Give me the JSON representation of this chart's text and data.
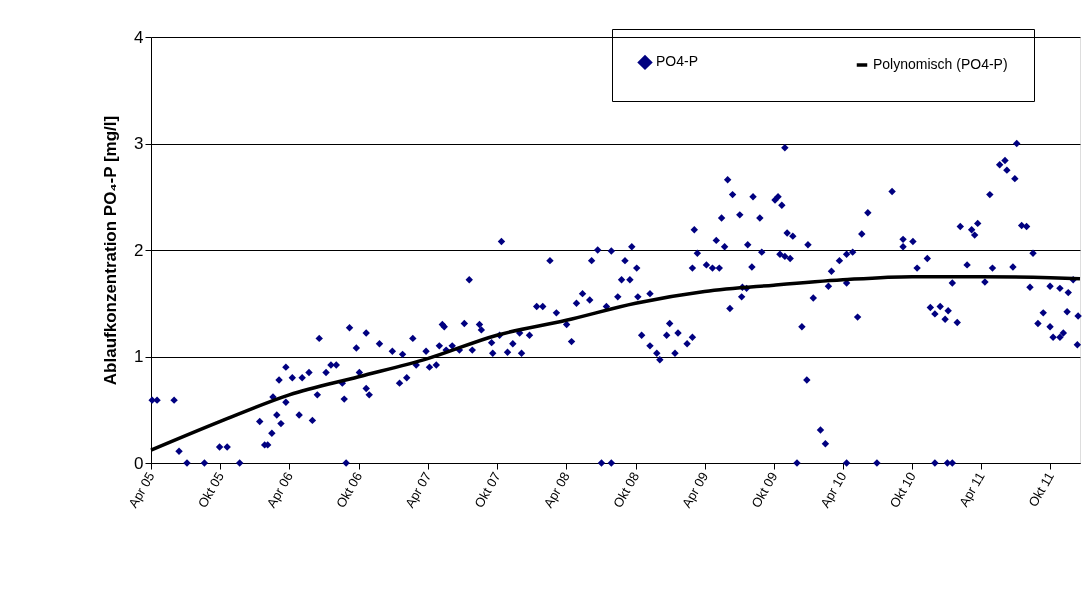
{
  "chart_data": {
    "type": "scatter",
    "ylabel": "Ablaufkonzentration PO₄-P [mg/l]",
    "xlim": [
      "2005-04-01",
      "2011-12-18"
    ],
    "xticks": [
      {
        "value": "2005-04-01",
        "label": "Apr 05"
      },
      {
        "value": "2005-10-01",
        "label": "Okt 05"
      },
      {
        "value": "2006-04-01",
        "label": "Apr 06"
      },
      {
        "value": "2006-10-01",
        "label": "Okt 06"
      },
      {
        "value": "2007-04-01",
        "label": "Apr 07"
      },
      {
        "value": "2007-10-01",
        "label": "Okt 07"
      },
      {
        "value": "2008-04-01",
        "label": "Apr 08"
      },
      {
        "value": "2008-10-01",
        "label": "Okt 08"
      },
      {
        "value": "2009-04-01",
        "label": "Apr 09"
      },
      {
        "value": "2009-10-01",
        "label": "Okt 09"
      },
      {
        "value": "2010-04-01",
        "label": "Apr 10"
      },
      {
        "value": "2010-10-01",
        "label": "Okt 10"
      },
      {
        "value": "2011-04-01",
        "label": "Apr 11"
      },
      {
        "value": "2011-10-01",
        "label": "Okt 11"
      }
    ],
    "ylim": [
      0,
      4
    ],
    "yticks": [
      0,
      1,
      2,
      3,
      4
    ],
    "grid": "y",
    "legend": "top right",
    "series": [
      {
        "name": "PO4-P",
        "marker": "diamond",
        "color": "#000080",
        "x": [
          "2005-04-04",
          "2005-04-17",
          "2005-06-01",
          "2005-06-14",
          "2005-07-05",
          "2005-08-20",
          "2005-09-29",
          "2005-10-19",
          "2005-11-21",
          "2006-01-13",
          "2006-01-26",
          "2006-02-03",
          "2006-02-14",
          "2006-02-17",
          "2006-02-27",
          "2006-03-10",
          "2006-03-05",
          "2006-03-23",
          "2006-03-23",
          "2006-04-27",
          "2006-04-09",
          "2006-05-05",
          "2006-05-23",
          "2006-06-01",
          "2006-06-14",
          "2006-06-19",
          "2006-07-07",
          "2006-07-20",
          "2006-08-03",
          "2006-08-19",
          "2006-08-24",
          "2006-08-29",
          "2006-09-07",
          "2006-09-25",
          "2006-10-03",
          "2006-10-21",
          "2006-10-21",
          "2006-10-29",
          "2006-11-25",
          "2006-12-29",
          "2007-01-17",
          "2007-01-25",
          "2007-02-05",
          "2007-02-21",
          "2007-03-02",
          "2007-03-28",
          "2007-04-06",
          "2007-04-24",
          "2007-05-15",
          "2007-05-02",
          "2007-06-05",
          "2007-05-10",
          "2007-05-20",
          "2007-06-24",
          "2007-07-07",
          "2007-07-20",
          "2007-07-28",
          "2007-08-16",
          "2007-08-21",
          "2007-09-17",
          "2007-09-20",
          "2007-10-13",
          "2007-10-08",
          "2007-10-29",
          "2007-11-12",
          "2007-11-30",
          "2007-12-05",
          "2007-12-26",
          "2008-01-14",
          "2008-01-30",
          "2008-02-18",
          "2008-03-06",
          "2008-04-02",
          "2008-04-15",
          "2008-04-28",
          "2008-05-14",
          "2008-06-02",
          "2008-06-07",
          "2008-06-23",
          "2008-07-03",
          "2008-07-29",
          "2008-07-16",
          "2008-07-29",
          "2008-08-15",
          "2008-08-25",
          "2008-09-16",
          "2008-09-03",
          "2008-09-21",
          "2008-10-04",
          "2008-10-07",
          "2008-10-17",
          "2008-11-08",
          "2008-11-08",
          "2008-11-26",
          "2008-12-04",
          "2008-12-22",
          "2008-12-30",
          "2009-01-13",
          "2009-01-21",
          "2009-02-14",
          "2009-02-28",
          "2009-03-05",
          "2009-02-28",
          "2009-03-13",
          "2009-04-06",
          "2009-04-22",
          "2009-05-02",
          "2009-05-16",
          "2009-05-10",
          "2009-05-24",
          "2009-06-01",
          "2009-06-14",
          "2009-06-07",
          "2009-07-03",
          "2009-07-10",
          "2009-07-24",
          "2009-08-04",
          "2009-08-07",
          "2009-07-08",
          "2009-07-21",
          "2009-08-25",
          "2009-08-30",
          "2009-10-04",
          "2009-10-12",
          "2009-10-22",
          "2009-10-17",
          "2009-10-30",
          "2009-11-13",
          "2009-10-30",
          "2009-11-05",
          "2009-11-20",
          "2009-12-14",
          "2009-12-30",
          "2009-12-27",
          "2009-12-01",
          "2010-01-13",
          "2010-02-01",
          "2010-02-14",
          "2010-02-22",
          "2010-03-02",
          "2010-03-23",
          "2010-04-11",
          "2010-04-27",
          "2010-04-11",
          "2010-04-11",
          "2010-05-10",
          "2010-05-21",
          "2010-06-06",
          "2010-06-30",
          "2010-08-09",
          "2010-09-07",
          "2010-09-07",
          "2010-10-03",
          "2010-10-14",
          "2010-11-10",
          "2010-11-18",
          "2010-11-30",
          "2010-12-14",
          "2011-01-04",
          "2010-12-27",
          "2011-01-28",
          "2010-11-30",
          "2011-01-02",
          "2011-01-15",
          "2011-01-15",
          "2011-02-05",
          "2011-02-23",
          "2011-03-07",
          "2011-03-15",
          "2011-03-23",
          "2011-04-11",
          "2011-04-24",
          "2011-05-01",
          "2011-05-20",
          "2011-06-03",
          "2011-06-08",
          "2011-06-29",
          "2011-07-04",
          "2011-06-24",
          "2011-07-17",
          "2011-07-30",
          "2011-08-08",
          "2011-08-16",
          "2011-08-29",
          "2011-09-12",
          "2011-09-30",
          "2011-10-08",
          "2011-10-26",
          "2011-11-04",
          "2011-09-30",
          "2011-10-26",
          "2011-11-17",
          "2011-11-14",
          "2011-11-30",
          "2011-12-13",
          "2011-12-11"
        ],
        "values": [
          0.59,
          0.59,
          0.59,
          0.11,
          0,
          0,
          0.15,
          0.15,
          0,
          0.39,
          0.17,
          0.17,
          0.28,
          0.62,
          0.45,
          0.37,
          0.78,
          0.9,
          0.57,
          0.45,
          0.8,
          0.8,
          0.85,
          0.4,
          0.64,
          1.17,
          0.85,
          0.92,
          0.92,
          0.75,
          0.6,
          0,
          1.27,
          1.08,
          0.85,
          1.22,
          0.7,
          0.64,
          1.12,
          1.05,
          0.75,
          1.02,
          0.8,
          1.17,
          0.92,
          1.05,
          0.9,
          0.92,
          1.28,
          1.1,
          1.1,
          1.3,
          1.06,
          1.06,
          1.31,
          1.72,
          1.06,
          1.3,
          1.25,
          1.13,
          1.03,
          2.08,
          1.2,
          1.04,
          1.12,
          1.22,
          1.03,
          1.2,
          1.47,
          1.47,
          1.9,
          1.41,
          1.3,
          1.14,
          1.5,
          1.59,
          1.53,
          1.9,
          2.0,
          0,
          0,
          1.47,
          1.99,
          1.56,
          1.72,
          1.72,
          1.9,
          2.03,
          1.83,
          1.56,
          1.2,
          1.59,
          1.1,
          1.03,
          0.97,
          1.2,
          1.31,
          1.03,
          1.22,
          1.12,
          1.18,
          2.19,
          1.83,
          1.97,
          1.86,
          1.83,
          2.09,
          2.3,
          1.83,
          2.03,
          2.66,
          2.52,
          1.45,
          2.33,
          1.65,
          2.05,
          1.84,
          2.5,
          1.56,
          1.64,
          2.3,
          1.98,
          2.47,
          2.5,
          2.42,
          1.96,
          1.94,
          1.92,
          2.96,
          2.16,
          2.13,
          1.28,
          2.05,
          0.78,
          0,
          1.55,
          0.31,
          0.18,
          1.66,
          1.8,
          1.9,
          1.96,
          1.98,
          1.69,
          0,
          1.37,
          2.15,
          2.35,
          0,
          2.55,
          2.1,
          2.03,
          2.08,
          1.83,
          1.92,
          1.46,
          1.4,
          1.47,
          1.43,
          1.35,
          1.32,
          0,
          0,
          0,
          1.69,
          2.22,
          1.86,
          2.19,
          2.14,
          2.25,
          1.7,
          2.52,
          1.83,
          2.8,
          2.84,
          2.75,
          2.67,
          3.0,
          1.84,
          2.23,
          2.22,
          1.65,
          1.97,
          1.31,
          1.41,
          1.28,
          1.18,
          1.18,
          1.22,
          1.66,
          1.64,
          1.6,
          1.42,
          1.72,
          1.38,
          1.11
        ]
      },
      {
        "name": "Polynomisch (PO4-P)",
        "type": "line",
        "marker": "none",
        "line_style": "solid",
        "color": "#000000",
        "x": [
          "2005-04-01",
          "2005-10-01",
          "2006-04-01",
          "2006-10-01",
          "2007-04-01",
          "2007-10-01",
          "2008-04-01",
          "2008-10-01",
          "2009-04-01",
          "2009-10-01",
          "2010-04-01",
          "2010-10-01",
          "2011-04-01",
          "2011-10-01",
          "2011-12-18"
        ],
        "values": [
          0.12,
          0.39,
          0.64,
          0.81,
          0.98,
          1.2,
          1.34,
          1.5,
          1.61,
          1.67,
          1.72,
          1.75,
          1.75,
          1.74,
          1.73
        ]
      }
    ]
  }
}
